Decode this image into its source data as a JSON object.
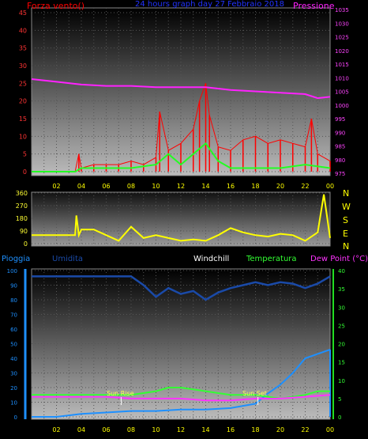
{
  "header": {
    "left": "Forza vento()",
    "center": "24 hours graph day  27 Febbraio 2018",
    "right": "Pressione"
  },
  "panels": {
    "wind": {
      "wind_axis": {
        "min": 0,
        "max": 45,
        "ticks": [
          0,
          5,
          10,
          15,
          20,
          25,
          30,
          35,
          40,
          45
        ]
      },
      "pressure_axis": {
        "min": 975,
        "max": 1035,
        "ticks": [
          975,
          980,
          985,
          990,
          995,
          1000,
          1005,
          1010,
          1015,
          1020,
          1025,
          1030,
          1035
        ]
      }
    },
    "direction": {
      "axis": {
        "min": 0,
        "max": 360,
        "ticks": [
          0,
          90,
          180,
          270,
          360
        ]
      },
      "compass": [
        "N",
        "W",
        "S",
        "E",
        "N"
      ]
    },
    "env": {
      "left_label": "Pioggia",
      "humidity_label": "Umidita",
      "windchill_label": "Windchill",
      "temp_label": "Temperatura",
      "dew_label": "Dew Point (°C)",
      "left_axis": {
        "min": 0,
        "max": 100,
        "ticks": [
          0,
          10,
          20,
          30,
          40,
          50,
          60,
          70,
          80,
          90,
          100
        ]
      },
      "right_axis": {
        "min": 0,
        "max": 40,
        "ticks": [
          0,
          5,
          10,
          15,
          20,
          25,
          30,
          35,
          40
        ]
      },
      "sunrise_label": "Sun Rise",
      "sunset_label": "Sun Set"
    },
    "x_ticks": [
      "02",
      "04",
      "06",
      "08",
      "10",
      "12",
      "14",
      "16",
      "18",
      "20",
      "22",
      "00"
    ]
  },
  "colors": {
    "wind_gust": "#ff0000",
    "wind_avg": "#22ff22",
    "pressure": "#ff22ff",
    "direction": "#ffff00",
    "rain": "#1e90ff",
    "humidity": "#1a4aa8",
    "temperature": "#33ff33",
    "dewpoint": "#ff33ff",
    "windchill": "#ffffff"
  },
  "chart_data": [
    {
      "type": "line",
      "x_unit": "hour",
      "series": [
        {
          "name": "Forza vento()",
          "axis": "left",
          "x": [
            0,
            3.5,
            3.8,
            4,
            5,
            6,
            7,
            8,
            9,
            10,
            10.3,
            11,
            12,
            13,
            13.5,
            14,
            14.3,
            15,
            16,
            17,
            18,
            19,
            20,
            21,
            22,
            22.5,
            23,
            24
          ],
          "values": [
            0,
            0,
            5,
            1,
            2,
            2,
            2,
            3,
            2,
            4,
            17,
            6,
            8,
            12,
            20,
            25,
            16,
            7,
            6,
            9,
            10,
            8,
            9,
            8,
            7,
            15,
            5,
            3
          ]
        },
        {
          "name": "",
          "axis": "left",
          "x": [
            0,
            3.5,
            4,
            6,
            8,
            10,
            11,
            12,
            13,
            14,
            15,
            16,
            18,
            20,
            22,
            24
          ],
          "values": [
            0,
            0,
            1,
            1,
            1,
            2,
            5,
            2,
            5,
            8,
            3,
            1,
            1,
            1,
            2,
            1
          ]
        },
        {
          "name": "Pressione",
          "axis": "right",
          "x": [
            0,
            2,
            4,
            6,
            8,
            10,
            12,
            14,
            16,
            18,
            20,
            22,
            23,
            24
          ],
          "values": [
            1009.5,
            1008.5,
            1007.5,
            1007,
            1007,
            1006.5,
            1006.5,
            1006.5,
            1005.5,
            1005,
            1004.5,
            1004,
            1002.5,
            1003
          ]
        }
      ]
    },
    {
      "type": "line",
      "x_unit": "hour",
      "series": [
        {
          "name": "",
          "values_unit": "deg",
          "x": [
            0,
            3.5,
            3.6,
            3.8,
            4,
            5,
            6,
            7,
            8,
            9,
            10,
            11,
            12,
            13,
            14,
            15,
            16,
            17,
            18,
            19,
            20,
            21,
            22,
            23,
            23.5,
            24
          ],
          "values": [
            60,
            60,
            200,
            60,
            100,
            100,
            60,
            20,
            120,
            40,
            60,
            40,
            20,
            30,
            20,
            60,
            110,
            80,
            60,
            50,
            70,
            60,
            20,
            80,
            350,
            40
          ]
        }
      ]
    },
    {
      "type": "line",
      "x_unit": "hour",
      "series": [
        {
          "name": "Umidita",
          "axis": "left",
          "x": [
            0,
            8,
            9,
            10,
            11,
            12,
            13,
            14,
            15,
            16,
            17,
            18,
            19,
            20,
            21,
            22,
            23,
            24
          ],
          "values": [
            96,
            96,
            90,
            82,
            88,
            84,
            86,
            80,
            85,
            88,
            90,
            92,
            90,
            92,
            91,
            88,
            91,
            96
          ]
        },
        {
          "name": "Pioggia",
          "axis": "left",
          "x": [
            0,
            2,
            4,
            6,
            8,
            10,
            12,
            14,
            16,
            18,
            19,
            20,
            21,
            22,
            23,
            24
          ],
          "values": [
            0,
            0,
            2,
            3,
            4,
            4,
            5,
            5,
            6,
            9,
            16,
            22,
            30,
            40,
            43,
            46
          ]
        },
        {
          "name": "Temperatura",
          "axis": "right",
          "x": [
            0,
            2,
            4,
            6,
            8,
            10,
            11,
            12,
            14,
            16,
            18,
            20,
            22,
            23,
            24
          ],
          "values": [
            6,
            6,
            6,
            6,
            6,
            7,
            8,
            8,
            7,
            6,
            6,
            5,
            6,
            7,
            7
          ]
        },
        {
          "name": "Dew Point (°C)",
          "axis": "right",
          "x": [
            0,
            2,
            4,
            6,
            8,
            10,
            12,
            14,
            16,
            18,
            20,
            22,
            24
          ],
          "values": [
            5.5,
            5.5,
            5.5,
            5.5,
            5,
            5,
            5,
            4.5,
            4.5,
            5,
            5,
            5.5,
            6
          ]
        }
      ]
    }
  ]
}
